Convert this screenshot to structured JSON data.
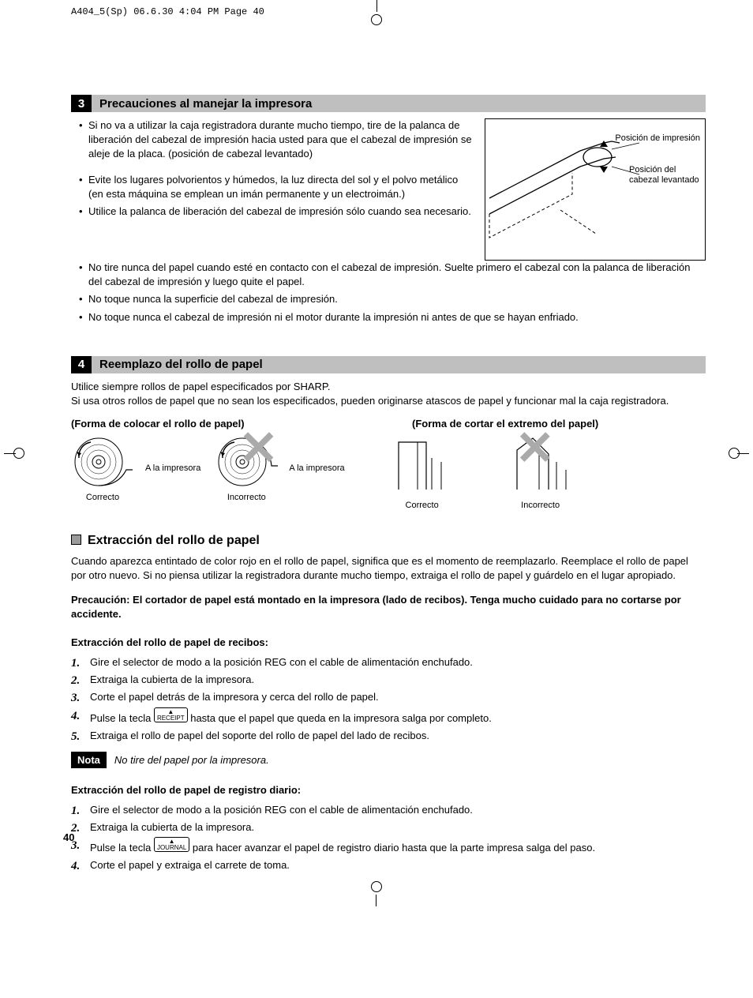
{
  "page_header": "A404_5(Sp)  06.6.30 4:04 PM  Page 40",
  "page_number": "40",
  "section3": {
    "num": "3",
    "title": "Precauciones al manejar la impresora",
    "bullets_top": [
      "Si no va a utilizar la caja registradora durante mucho tiempo, tire de la palanca de liberación del cabezal de impresión hacia usted para que el cabezal de impresión se aleje de la placa. (posición de cabezal levantado)",
      "Evite los lugares polvorientos y húmedos, la luz directa del sol y el polvo metálico (en esta máquina se emplean un imán permanente y un electroimán.)",
      "Utilice la palanca de liberación del cabezal de impresión sólo cuando sea necesario."
    ],
    "bullets_full": [
      "No tire nunca del papel cuando esté en contacto con el cabezal de impresión. Suelte primero el cabezal con la palanca de liberación del cabezal de impresión y luego quite el papel.",
      "No toque nunca la superficie del cabezal de impresión.",
      "No toque nunca el cabezal de impresión ni el motor durante la impresión ni antes de que se hayan enfriado."
    ],
    "fig_label1": "Posición de impresión",
    "fig_label2": "Posición del cabezal levantado"
  },
  "section4": {
    "num": "4",
    "title": "Reemplazo del rollo de papel",
    "intro": "Utilice siempre rollos de papel especificados por SHARP.\nSi usa otros rollos de papel que no sean los especificados, pueden originarse atascos de papel y funcionar mal la caja registradora.",
    "subhead_left": "(Forma de colocar el rollo de papel)",
    "subhead_right": "(Forma de cortar el extremo del papel)",
    "to_printer": "A la impresora",
    "correct": "Correcto",
    "incorrect": "Incorrecto"
  },
  "extraction": {
    "title": "Extracción del rollo de papel",
    "intro": "Cuando aparezca entintado de color rojo en el rollo de papel, significa que es el momento de reemplazarlo. Reemplace el rollo de papel por otro nuevo. Si no piensa utilizar la registradora durante mucho tiempo, extraiga el rollo de papel y guárdelo en el lugar apropiado.",
    "caution": "Precaución: El cortador de papel está montado en la impresora (lado de recibos). Tenga mucho cuidado para no cortarse por accidente.",
    "receipt_title": "Extracción del rollo de papel de recibos:",
    "receipt_steps": [
      "Gire el selector de modo a la posición REG con el cable de alimentación enchufado.",
      "Extraiga la cubierta de la impresora.",
      "Corte el papel detrás de la impresora y cerca del rollo de papel.",
      "Pulse la tecla {KEY_RECEIPT} hasta que el papel que queda en la impresora salga por completo.",
      "Extraiga el rollo de papel del soporte del rollo de papel del lado de recibos."
    ],
    "key_receipt": "RECEIPT",
    "nota_label": "Nota",
    "nota_text": "No tire del papel por la impresora.",
    "journal_title": "Extracción del rollo de papel de registro diario:",
    "journal_steps": [
      "Gire el selector de modo a la posición REG con el cable de alimentación enchufado.",
      "Extraiga la cubierta de la impresora.",
      "Pulse la tecla {KEY_JOURNAL} para hacer avanzar el papel de registro diario hasta que la parte impresa salga del paso.",
      "Corte el papel y extraiga el carrete de toma."
    ],
    "key_journal": "JOURNAL"
  }
}
